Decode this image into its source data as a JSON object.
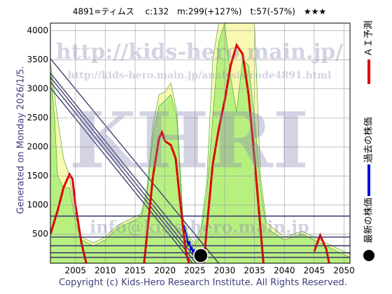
{
  "chart_data": {
    "type": "line",
    "title": "4891=ティムス　 c:132　m:299(+127%)　t:57(-57%)　★★★",
    "side_label": "Generated on Monday 2026/1/5.",
    "footer": "Copyright (c) Kids-Hero Research Institute. All Rights Reserved.",
    "watermarks": [
      "http://kids-hero.main.jp/",
      "http://kids-hero.main.jp/analysis/code4891.html",
      "KHRI",
      "info@kids-hero.main.jp"
    ],
    "xlim": [
      2000.8,
      2051
    ],
    "ylim": [
      0,
      4130
    ],
    "xticks": [
      2005,
      2010,
      2015,
      2020,
      2025,
      2030,
      2035,
      2040,
      2045,
      2050
    ],
    "yticks": [
      500,
      1000,
      1500,
      2000,
      2500,
      3000,
      3500,
      4000
    ],
    "grid": true,
    "areas": [
      {
        "color": "#f8f8b0",
        "x": [
          2000.8,
          2002,
          2003,
          2004,
          2005,
          2006,
          2008,
          2010,
          2012,
          2014,
          2016,
          2017,
          2018,
          2019,
          2020,
          2021,
          2022,
          2023,
          2024,
          2025,
          2026,
          2027,
          2028,
          2029,
          2035,
          2036,
          2037,
          2040,
          2043,
          2045,
          2047,
          2049,
          2051
        ],
        "values": [
          3450,
          2500,
          1800,
          1500,
          800,
          450,
          350,
          450,
          650,
          750,
          850,
          1300,
          2400,
          2900,
          2950,
          3100,
          2600,
          800,
          450,
          350,
          600,
          1400,
          3500,
          4130,
          4130,
          1500,
          700,
          450,
          550,
          450,
          350,
          250,
          150
        ]
      },
      {
        "color": "#b8f080",
        "x": [
          2000.8,
          2001.5,
          2002,
          2003,
          2004,
          2005,
          2006,
          2008,
          2010,
          2012,
          2014,
          2016,
          2017,
          2018,
          2019,
          2020,
          2021,
          2022,
          2023,
          2024,
          2025,
          2026,
          2027,
          2028,
          2029,
          2030,
          2031,
          2032,
          2033,
          2034,
          2035,
          2036,
          2037,
          2040,
          2043,
          2045,
          2047,
          2049,
          2051
        ],
        "values": [
          3300,
          2500,
          1500,
          1300,
          1300,
          700,
          400,
          300,
          400,
          600,
          700,
          800,
          1200,
          2200,
          2700,
          2800,
          2900,
          2500,
          700,
          400,
          300,
          500,
          1200,
          2500,
          3800,
          4130,
          3200,
          2600,
          3500,
          3400,
          2500,
          1300,
          600,
          400,
          500,
          400,
          300,
          200,
          100
        ]
      }
    ],
    "levels": [
      {
        "color": "#404070",
        "values": [
          810,
          450,
          300,
          180,
          100
        ]
      }
    ],
    "trendlines": [
      {
        "color": "#404070",
        "x": [
          2000.8,
          2029
        ],
        "values": [
          3520,
          0
        ]
      },
      {
        "color": "#404070",
        "x": [
          2000.8,
          2026.5
        ],
        "values": [
          3270,
          0
        ]
      },
      {
        "color": "#404070",
        "x": [
          2000.8,
          2025.8
        ],
        "values": [
          3200,
          0
        ]
      },
      {
        "color": "#404070",
        "x": [
          2000.8,
          2025.2
        ],
        "values": [
          3120,
          0
        ]
      },
      {
        "color": "#404070",
        "x": [
          2000.8,
          2024.6
        ],
        "values": [
          3020,
          0
        ]
      }
    ],
    "series": [
      {
        "name": "ＡＩ予測",
        "color": "#e00000",
        "x": [
          2000.8,
          2002,
          2003,
          2004,
          2004.5,
          2005,
          2006,
          2006.8,
          2010,
          2016.5,
          2017,
          2018,
          2019,
          2019.5,
          2020,
          2021,
          2021.8,
          2022.5,
          2023.5,
          2024,
          2025,
          2026.5,
          2027,
          2028,
          2029,
          2030,
          2031,
          2032,
          2033,
          2034,
          2035,
          2036,
          2036.5,
          2040,
          2045,
          2046,
          2047,
          2047.5
        ],
        "values": [
          500,
          900,
          1300,
          1530,
          1450,
          1000,
          350,
          0,
          null,
          0,
          500,
          1500,
          2150,
          2250,
          2100,
          2030,
          1800,
          1100,
          200,
          0,
          null,
          0,
          600,
          1700,
          2300,
          2800,
          3400,
          3750,
          3600,
          2900,
          1800,
          600,
          0,
          null,
          200,
          480,
          250,
          0
        ]
      },
      {
        "name": "過去の株価",
        "color": "#0000e0",
        "x": [
          2023.2,
          2023.5,
          2023.7,
          2023.9,
          2024.1,
          2024.3,
          2024.5,
          2024.7,
          2024.9,
          2025.1,
          2025.3,
          2025.6
        ],
        "values": [
          650,
          520,
          430,
          300,
          380,
          220,
          280,
          160,
          240,
          150,
          200,
          130
        ]
      },
      {
        "name": "最新の株価",
        "color": "#000000",
        "x": [
          2026
        ],
        "values": [
          132
        ]
      }
    ]
  }
}
